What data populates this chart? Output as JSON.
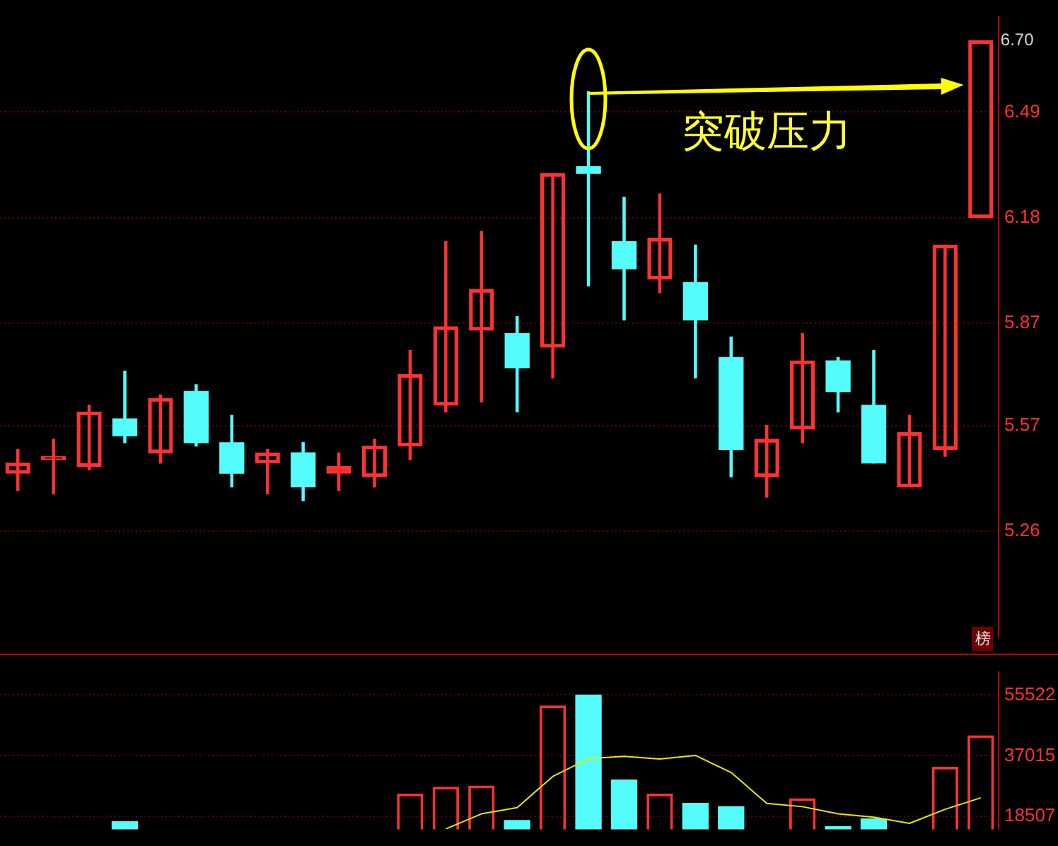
{
  "chart_data": [
    {
      "type": "candlestick",
      "categories": [
        null,
        null,
        null,
        null,
        null,
        null,
        null,
        null,
        null,
        null,
        null,
        null,
        null,
        null,
        null,
        null,
        null,
        null,
        null,
        null,
        null,
        null,
        null,
        null,
        null,
        null,
        null,
        null
      ],
      "ohlc": [
        [
          5.43,
          5.5,
          5.38,
          5.46
        ],
        [
          5.47,
          5.53,
          5.37,
          5.48
        ],
        [
          5.45,
          5.63,
          5.44,
          5.61
        ],
        [
          5.59,
          5.73,
          5.52,
          5.54
        ],
        [
          5.49,
          5.66,
          5.46,
          5.65
        ],
        [
          5.67,
          5.69,
          5.51,
          5.52
        ],
        [
          5.52,
          5.6,
          5.39,
          5.43
        ],
        [
          5.46,
          5.5,
          5.37,
          5.49
        ],
        [
          5.49,
          5.52,
          5.35,
          5.39
        ],
        [
          5.43,
          5.49,
          5.38,
          5.45
        ],
        [
          5.42,
          5.53,
          5.39,
          5.51
        ],
        [
          5.51,
          5.79,
          5.47,
          5.72
        ],
        [
          5.63,
          6.11,
          5.61,
          5.86
        ],
        [
          5.85,
          6.14,
          5.64,
          5.97
        ],
        [
          5.84,
          5.89,
          5.61,
          5.74
        ],
        [
          5.8,
          6.31,
          5.71,
          6.31
        ],
        [
          6.33,
          6.55,
          5.98,
          6.31
        ],
        [
          6.11,
          6.24,
          5.88,
          6.03
        ],
        [
          6.0,
          6.25,
          5.96,
          6.12
        ],
        [
          5.99,
          6.1,
          5.71,
          5.88
        ],
        [
          5.77,
          5.83,
          5.42,
          5.5
        ],
        [
          5.42,
          5.57,
          5.36,
          5.53
        ],
        [
          5.56,
          5.84,
          5.52,
          5.76
        ],
        [
          5.76,
          5.77,
          5.61,
          5.67
        ],
        [
          5.63,
          5.79,
          5.46,
          5.46
        ],
        [
          5.39,
          5.6,
          5.39,
          5.55
        ],
        [
          5.5,
          6.1,
          5.48,
          6.1
        ],
        [
          6.18,
          6.7,
          6.18,
          6.7
        ]
      ],
      "colors": [
        "#ff3232",
        "#ff3232",
        "#ff3232",
        "#54fcfc",
        "#ff3232",
        "#54fcfc",
        "#54fcfc",
        "#ff3232",
        "#54fcfc",
        "#ff3232",
        "#ff3232",
        "#ff3232",
        "#ff3232",
        "#ff3232",
        "#54fcfc",
        "#ff3232",
        "#54fcfc",
        "#54fcfc",
        "#ff3232",
        "#54fcfc",
        "#54fcfc",
        "#ff3232",
        "#ff3232",
        "#54fcfc",
        "#54fcfc",
        "#ff3232",
        "#ff3232",
        "#ff3232"
      ],
      "ylim": [
        4.95,
        6.77
      ],
      "yticks": [
        5.26,
        5.57,
        5.87,
        6.18,
        6.49
      ],
      "grid": "y",
      "tick_labels": "y",
      "legend": false,
      "annotations": [
        "突破压力",
        "6.70",
        "榜"
      ]
    },
    {
      "type": "bar",
      "categories": [
        null,
        null,
        null,
        null,
        null,
        null,
        null,
        null,
        null,
        null,
        null,
        null,
        null,
        null,
        null,
        null,
        null,
        null,
        null,
        null,
        null,
        null,
        null,
        null,
        null,
        null,
        null,
        null
      ],
      "series": [
        {
          "type": "bar",
          "values": [
            null,
            null,
            null,
            16900,
            null,
            null,
            null,
            null,
            null,
            null,
            null,
            25300,
            27400,
            27800,
            17300,
            52200,
            55500,
            29600,
            25300,
            22500,
            21500,
            null,
            23900,
            15400,
            17800,
            null,
            33500,
            43100
          ],
          "colors": [
            "#ff3232",
            "#ff3232",
            "#ff3232",
            "#54fcfc",
            "#ff3232",
            "#54fcfc",
            "#54fcfc",
            "#ff3232",
            "#54fcfc",
            "#ff3232",
            "#ff3232",
            "#ff3232",
            "#ff3232",
            "#ff3232",
            "#54fcfc",
            "#ff3232",
            "#54fcfc",
            "#54fcfc",
            "#ff3232",
            "#54fcfc",
            "#54fcfc",
            "#ff3232",
            "#ff3232",
            "#54fcfc",
            "#54fcfc",
            "#ff3232",
            "#ff3232",
            "#ff3232"
          ]
        },
        {
          "type": "line",
          "color": "#e8e800",
          "values": [
            null,
            null,
            null,
            null,
            null,
            null,
            null,
            null,
            null,
            null,
            null,
            null,
            14700,
            19300,
            21200,
            30700,
            36100,
            36800,
            36000,
            37100,
            31900,
            22500,
            21500,
            19300,
            18300,
            16400,
            20700,
            24200
          ]
        }
      ],
      "ylim": [
        14600,
        62600
      ],
      "yticks": [
        18507,
        37015,
        55522
      ],
      "grid": "y",
      "tick_labels": "y",
      "legend": false,
      "marker": "none"
    }
  ]
}
